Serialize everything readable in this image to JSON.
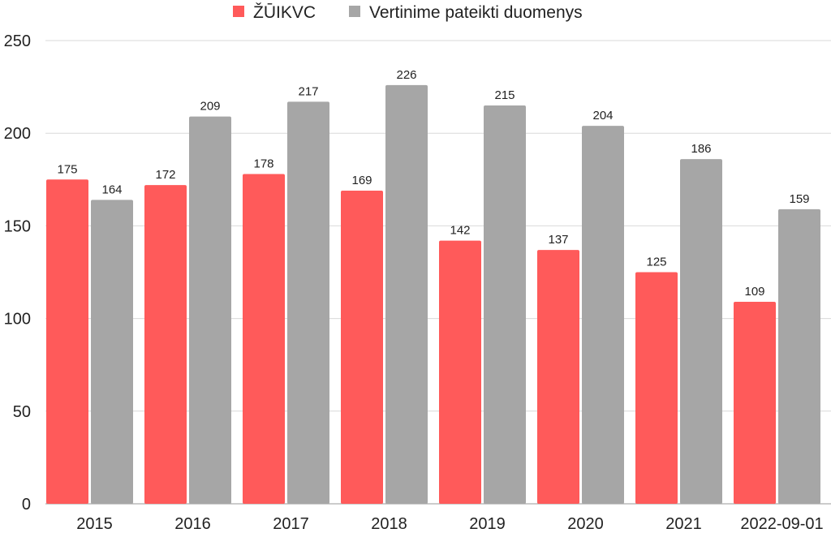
{
  "chart_data": {
    "type": "bar",
    "categories": [
      "2015",
      "2016",
      "2017",
      "2018",
      "2019",
      "2020",
      "2021",
      "2022-09-01"
    ],
    "series": [
      {
        "name": "ŽŪIKVC",
        "color": "#ff5a5a",
        "values": [
          175,
          172,
          178,
          169,
          142,
          137,
          125,
          109
        ]
      },
      {
        "name": "Vertinime pateikti duomenys",
        "color": "#a6a6a6",
        "values": [
          164,
          209,
          217,
          226,
          215,
          204,
          186,
          159
        ]
      }
    ],
    "y_ticks": [
      "0",
      "50",
      "100",
      "150",
      "200",
      "250"
    ],
    "ylim": [
      0,
      250
    ],
    "grid": true,
    "legend_position": "top-center",
    "data_labels": true
  }
}
